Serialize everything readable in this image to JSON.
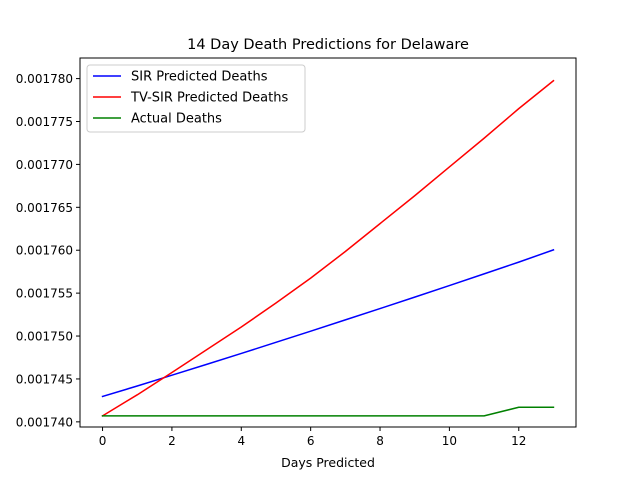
{
  "chart_data": {
    "type": "line",
    "title": "14 Day Death Predictions for Delaware",
    "xlabel": "Days Predicted",
    "ylabel": "",
    "xlim": [
      -0.65,
      13.65
    ],
    "ylim": [
      0.0017394,
      0.0017824
    ],
    "xticks": [
      0,
      2,
      4,
      6,
      8,
      10,
      12
    ],
    "yticks": [
      0.00174,
      0.001745,
      0.00175,
      0.001755,
      0.00176,
      0.001765,
      0.00177,
      0.001775,
      0.00178
    ],
    "ytick_labels": [
      "0.001740",
      "0.001745",
      "0.001750",
      "0.001755",
      "0.001760",
      "0.001765",
      "0.001770",
      "0.001775",
      "0.001780"
    ],
    "grid": false,
    "legend_position": "upper left",
    "x": [
      0,
      1,
      2,
      3,
      4,
      5,
      6,
      7,
      8,
      9,
      10,
      11,
      12,
      13
    ],
    "series": [
      {
        "name": "SIR Predicted Deaths",
        "color": "#0000ff",
        "values": [
          0.001742964,
          0.001744174,
          0.001745435,
          0.0017467,
          0.001747975,
          0.001749265,
          0.001750565,
          0.00175188,
          0.0017532,
          0.001754535,
          0.001755885,
          0.001757245,
          0.001758615,
          0.00176004
        ]
      },
      {
        "name": "TV-SIR Predicted Deaths",
        "color": "#ff0000",
        "values": [
          0.0017407,
          0.00174315,
          0.00174575,
          0.0017484,
          0.00175105,
          0.00175385,
          0.00175675,
          0.00175985,
          0.0017631,
          0.00176635,
          0.0017697,
          0.00177305,
          0.0017765,
          0.00177975
        ]
      },
      {
        "name": "Actual Deaths",
        "color": "#008000",
        "values": [
          0.0017407,
          0.0017407,
          0.0017407,
          0.0017407,
          0.0017407,
          0.0017407,
          0.0017407,
          0.0017407,
          0.0017407,
          0.0017407,
          0.0017407,
          0.0017407,
          0.0017417,
          0.0017417
        ]
      }
    ]
  }
}
